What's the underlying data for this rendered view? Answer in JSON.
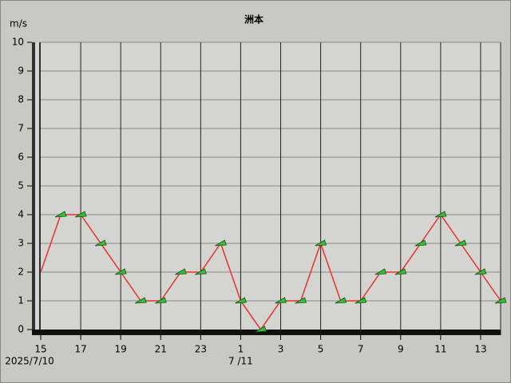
{
  "chart_data": {
    "type": "line",
    "title": "洲本",
    "y_label": "m/s",
    "categories": [
      "15",
      null,
      "17",
      null,
      "19",
      null,
      "21",
      null,
      "23",
      null,
      "1",
      null,
      "3",
      null,
      "5",
      null,
      "7",
      null,
      "9",
      null,
      "11",
      null,
      "13",
      null
    ],
    "date_labels": [
      "2025/7/10",
      "7 /11"
    ],
    "series": [
      {
        "color": "#e83030",
        "values": [
          2,
          4,
          4,
          3,
          2,
          1,
          1,
          2,
          2,
          3,
          1,
          0,
          1,
          1,
          3,
          1,
          1,
          2,
          2,
          3,
          4,
          3,
          2,
          1
        ]
      }
    ],
    "ylim": [
      0,
      10
    ],
    "yticks": [
      0,
      1,
      2,
      3,
      4,
      5,
      6,
      7,
      8,
      9,
      10
    ],
    "grid": true
  }
}
